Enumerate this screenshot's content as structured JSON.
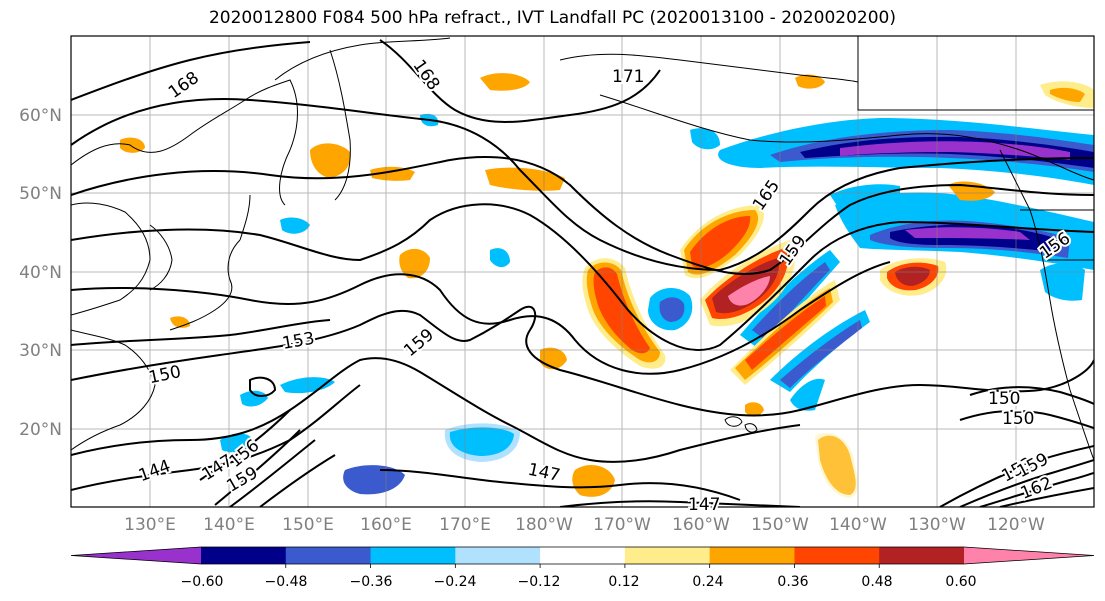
{
  "title": "2020012800 F084 500 hPa refract., IVT Landfall PC (2020013100 - 2020020200)",
  "map": {
    "lat_labels": [
      "60°N",
      "50°N",
      "40°N",
      "30°N",
      "20°N"
    ],
    "lon_labels": [
      "130°E",
      "140°E",
      "150°E",
      "160°E",
      "170°E",
      "180°W",
      "170°W",
      "160°W",
      "150°W",
      "140°W",
      "130°W",
      "120°W"
    ],
    "contour_labels": [
      "168",
      "168",
      "171",
      "165",
      "159",
      "156",
      "153",
      "159",
      "150",
      "144",
      "147",
      "156",
      "159",
      "147",
      "147",
      "150",
      "150",
      "153",
      "159",
      "162"
    ]
  },
  "colorbar": {
    "ticks": [
      "−0.60",
      "−0.48",
      "−0.36",
      "−0.24",
      "−0.12",
      "0.12",
      "0.24",
      "0.36",
      "0.48",
      "0.60"
    ],
    "colors": [
      "#9932CC",
      "#00008B",
      "#3A5ACD",
      "#00BFFF",
      "#B0E2FF",
      "#FFFFFF",
      "#FFEC8B",
      "#FFA500",
      "#FF4500",
      "#B22222",
      "#FF82AB"
    ]
  },
  "colors": {
    "purple": "#9932CC",
    "navy": "#00008B",
    "royal": "#3A5ACD",
    "sky": "#00BFFF",
    "pale": "#B0E2FF",
    "yellow": "#FFEC8B",
    "orange": "#FFA500",
    "orangered": "#FF4500",
    "firebrick": "#B22222",
    "pink": "#FF82AB"
  }
}
